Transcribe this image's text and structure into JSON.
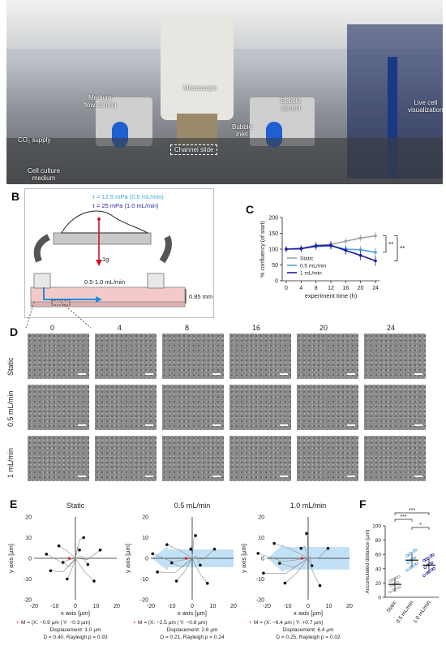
{
  "panels": {
    "A": {
      "letter": "A",
      "labels": {
        "microscope": "Microscope",
        "medium_flow_control": "Medium\nflow control",
        "bubble_control": "Bubble\ncontrol",
        "live_cell": "Live cell\nvisualization",
        "co2": "CO₂ supply",
        "channel_slide": "Channel slide",
        "bubble_inlet": "Bubble\ninlet",
        "cell_culture_medium": "Cell culture\nmedium"
      }
    },
    "B": {
      "letter": "B",
      "tau_1": "τ  = 12.5 mPa (0.5 mL/min)",
      "tau_2": "τ  = 25 mPa (1.0 mL/min)",
      "gravity": "1g",
      "flow": "0.5-1.0 mL/min",
      "height": "0.85 mm"
    },
    "C": {
      "letter": "C"
    },
    "D": {
      "letter": "D",
      "times": [
        "0 h",
        "4 h",
        "8 h",
        "16 h",
        "20 h",
        "24 h"
      ],
      "rows": [
        "Static",
        "0.5 mL/min",
        "1 mL/min"
      ]
    },
    "E": {
      "letter": "E",
      "plots": [
        {
          "title": "Static",
          "m": "M = (X: −0.9 µm  |  Y: −0.3 µm)",
          "disp": "Displacement: 1.0 µm",
          "d": "D = 0.40, Rayleigh p = 0.93"
        },
        {
          "title": "0.5 mL/min",
          "m": "M = (X: −2.5 µm  |  Y: −0.8 µm)",
          "disp": "Displacement: 2.6 µm",
          "d": "D = 0.21, Rayleigh p = 0.24"
        },
        {
          "title": "1.0 mL/min",
          "m": "M = (X: −6.4 µm  |  Y: +0.7 µm)",
          "disp": "Displacement: 6.4 µm",
          "d": "D = 0.25, Rayleigh p = 0.02"
        }
      ],
      "xlabel": "x axis [µm]",
      "ylabel": "y axis [µm]",
      "xticks": [
        "-20",
        "-10",
        "0",
        "10",
        "20"
      ],
      "yticks": [
        "20",
        "10",
        "0",
        "-10",
        "-20"
      ]
    },
    "F": {
      "letter": "F"
    }
  },
  "chart_data": [
    {
      "type": "line",
      "panel": "C",
      "ylabel": "% confluency (of start)",
      "xlabel": "experiment time (h)",
      "x": [
        0,
        4,
        8,
        12,
        16,
        20,
        24
      ],
      "ylim": [
        0,
        200
      ],
      "yticks": [
        0,
        50,
        100,
        150,
        200
      ],
      "series": [
        {
          "name": "Static",
          "color": "#a0a0a0",
          "values": [
            100,
            103,
            112,
            115,
            125,
            135,
            142
          ]
        },
        {
          "name": "0.5 mL/min",
          "color": "#4aa3df",
          "values": [
            100,
            102,
            108,
            110,
            100,
            98,
            90
          ]
        },
        {
          "name": "1 mL/min",
          "color": "#1a1aa6",
          "values": [
            100,
            101,
            110,
            112,
            96,
            80,
            63
          ]
        }
      ],
      "significance": [
        "**",
        "**"
      ]
    },
    {
      "type": "scatter",
      "panel": "F",
      "ylabel": "Accumulated distance (µm)",
      "categories": [
        "Static",
        "0.5 mL/min",
        "1.0 mL/min"
      ],
      "ylim": [
        0,
        100
      ],
      "yticks": [
        0,
        20,
        40,
        60,
        80,
        100
      ],
      "means": [
        18,
        52,
        45
      ],
      "colors": [
        "#a0a0a0",
        "#4aa3df",
        "#1a1aa6"
      ],
      "significance": [
        "***",
        "***",
        "*"
      ]
    }
  ]
}
